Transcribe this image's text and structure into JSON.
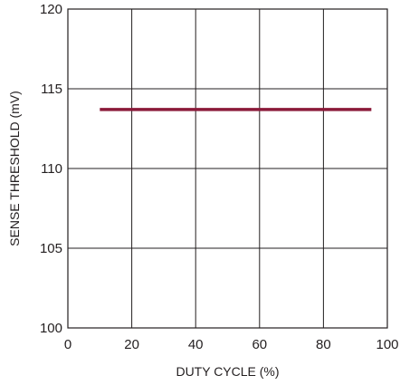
{
  "chart_data": {
    "type": "line",
    "xlabel": "DUTY CYCLE (%)",
    "ylabel": "SENSE THRESHOLD (mV)",
    "xlim": [
      0,
      100
    ],
    "ylim": [
      100,
      120
    ],
    "x_ticks": [
      0,
      20,
      40,
      60,
      80,
      100
    ],
    "y_ticks": [
      100,
      105,
      110,
      115,
      120
    ],
    "x_tick_labels": [
      "0",
      "20",
      "40",
      "60",
      "80",
      "100"
    ],
    "y_tick_labels": [
      "100",
      "105",
      "110",
      "115",
      "120"
    ],
    "grid": true,
    "series": [
      {
        "color": "#8b1a3a",
        "x": [
          10,
          95
        ],
        "y": [
          113.7,
          113.7
        ]
      }
    ]
  }
}
